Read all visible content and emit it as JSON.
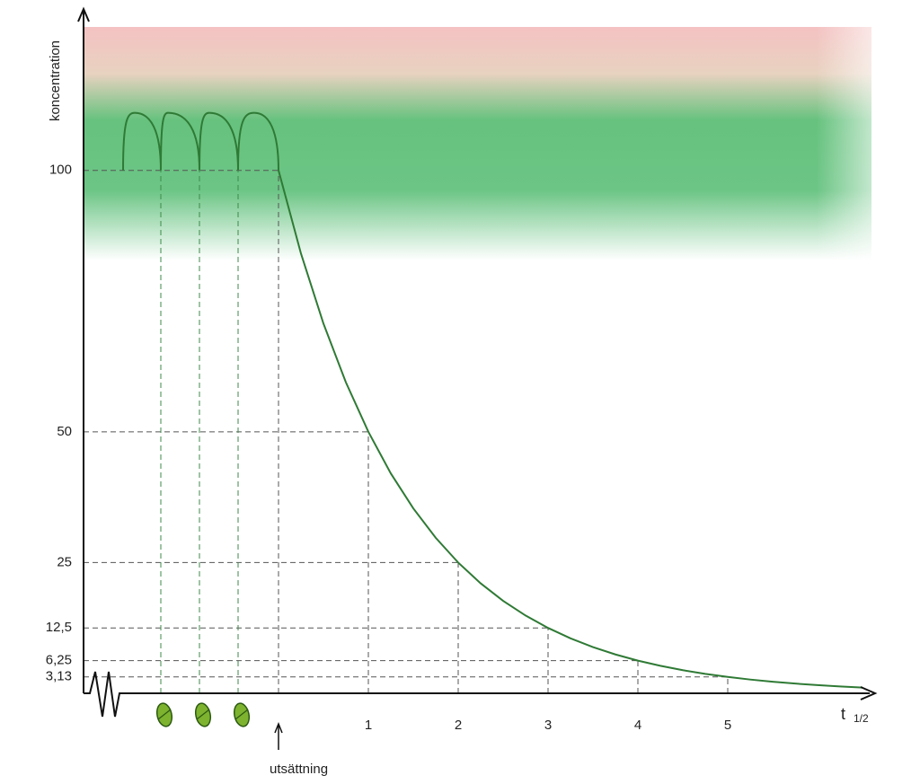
{
  "chart_data": {
    "type": "line",
    "y_label": "koncentration",
    "x_label": "t",
    "x_label_sub": "1/2",
    "annotation": {
      "text": "utsättning",
      "x": 0
    },
    "doses": [
      -1.31,
      -0.88,
      -0.45
    ],
    "xlim": [
      -2.17,
      6.6
    ],
    "ylim": [
      0,
      130
    ],
    "xticks": [
      1,
      2,
      3,
      4,
      5
    ],
    "yticks": [
      100,
      50,
      25,
      {
        "value": 12.5,
        "label": "12,5"
      },
      {
        "value": 6.25,
        "label": "6,25"
      },
      {
        "value": 3.13,
        "label": "3,13"
      }
    ],
    "series": [
      {
        "color": "#2f7a35",
        "x": [
          -1.73,
          -1.6,
          -1.31,
          -1.23,
          -0.88,
          -0.77,
          -0.45,
          -0.27,
          0,
          0.25,
          0.5,
          0.75,
          1,
          1.25,
          1.5,
          1.75,
          2,
          2.25,
          2.5,
          2.75,
          3,
          3.25,
          3.5,
          3.75,
          4,
          4.25,
          4.5,
          4.75,
          5,
          5.25,
          5.5,
          5.75,
          6,
          6.25,
          6.5
        ],
        "values": [
          100,
          111,
          100,
          111,
          100,
          111,
          100,
          111,
          100,
          84.09,
          70.71,
          59.46,
          50,
          42.04,
          35.36,
          29.73,
          25,
          21.02,
          17.68,
          14.87,
          12.5,
          10.51,
          8.84,
          7.43,
          6.25,
          5.26,
          4.42,
          3.72,
          3.13,
          2.63,
          2.21,
          1.86,
          1.56,
          1.31,
          1.1
        ]
      }
    ]
  }
}
